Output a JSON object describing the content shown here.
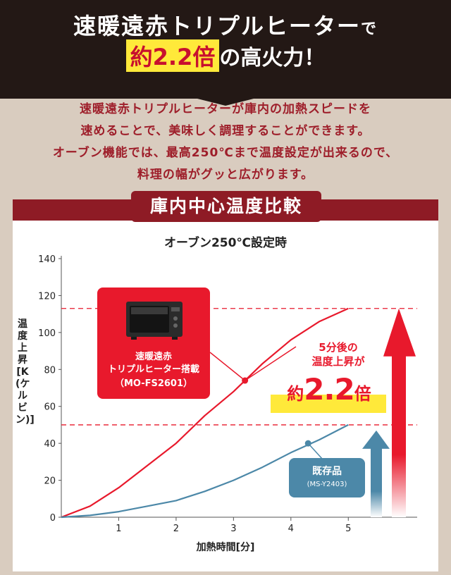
{
  "header": {
    "line1_main": "速暖遠赤トリプルヒーター",
    "line1_suffix": "で",
    "line2_highlight": "約2.2倍",
    "line2_rest": "の高火力！"
  },
  "lead": {
    "lines": [
      "速暖遠赤トリプルヒーターが庫内の加熱スピードを",
      "速めることで、美味しく調理することができます。",
      "オーブン機能では、最高250℃まで温度設定が出来るので、",
      "料理の幅がグッと広がります。"
    ]
  },
  "section_title": "庫内中心温度比較",
  "colors": {
    "dark": "#231815",
    "brand_red": "#8e1b25",
    "accent_red": "#e8192c",
    "accent_blue": "#4c88a8",
    "highlight_yellow": "#ffe93a"
  },
  "callouts": {
    "new_model": {
      "line1": "速暖遠赤",
      "line2": "トリプルヒーター搭載",
      "model": "（MO-FS2601）"
    },
    "old_model": {
      "label": "既存品",
      "model": "(MS-Y2403)"
    },
    "annotation": {
      "line1": "5分後の",
      "line2": "温度上昇が",
      "prefix": "約",
      "value": "2.2",
      "suffix": "倍"
    }
  },
  "chart_data": {
    "type": "line",
    "title": "オーブン250℃設定時",
    "xlabel": "加熱時間[分]",
    "ylabel": "温度上昇[K(ケルビン)]",
    "xlim": [
      0,
      6.2
    ],
    "ylim": [
      0,
      140
    ],
    "x_ticks": [
      1,
      2,
      3,
      4,
      5
    ],
    "y_ticks": [
      0,
      20,
      40,
      60,
      80,
      100,
      120,
      140
    ],
    "grid": false,
    "reference_lines_y": [
      113,
      50
    ],
    "series": [
      {
        "name": "速暖遠赤トリプルヒーター搭載（MO-FS2601）",
        "color": "#e8192c",
        "x": [
          0,
          0.5,
          1,
          1.5,
          2,
          2.5,
          3,
          3.5,
          4,
          4.5,
          5
        ],
        "y": [
          0,
          6,
          16,
          28,
          40,
          55,
          68,
          83,
          96,
          106,
          113
        ]
      },
      {
        "name": "既存品(MS-Y2403)",
        "color": "#4c88a8",
        "x": [
          0,
          0.5,
          1,
          1.5,
          2,
          2.5,
          3,
          3.5,
          4,
          4.5,
          5
        ],
        "y": [
          0,
          1,
          3,
          6,
          9,
          14,
          20,
          27,
          35,
          42,
          50
        ]
      }
    ],
    "markers": [
      {
        "series": 0,
        "x": 3.2,
        "y": 74
      },
      {
        "series": 1,
        "x": 4.3,
        "y": 40
      }
    ]
  }
}
